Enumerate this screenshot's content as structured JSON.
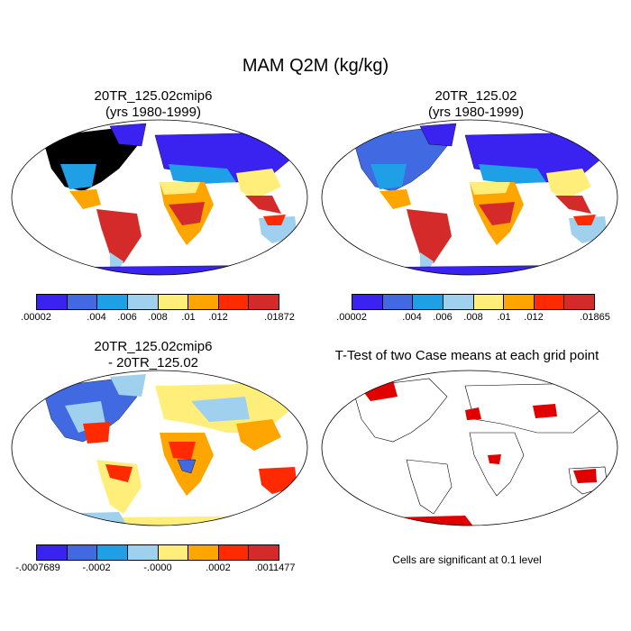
{
  "title": "MAM Q2M (kg/kg)",
  "colors": {
    "c1": "#3a22f0",
    "c2": "#4169e1",
    "c3": "#1e9fe6",
    "c4": "#9fd0ee",
    "c5": "#ffef7a",
    "c6": "#ffa500",
    "c7": "#ff2a00",
    "c8": "#d42a2a",
    "land_mid": "#ffef7a",
    "sig_red": "#e00000"
  },
  "panels": {
    "top_left": {
      "title_line1": "20TR_125.02cmip6",
      "title_line2": "(yrs 1980-1999)",
      "ticks": [
        ".00002",
        ".004",
        ".006",
        ".008",
        ".01",
        ".012",
        ".01872"
      ]
    },
    "top_right": {
      "title_line1": "20TR_125.02",
      "title_line2": "(yrs 1980-1999)",
      "ticks": [
        ".00002",
        ".004",
        ".006",
        ".008",
        ".01",
        ".012",
        ".01865"
      ]
    },
    "bottom_left": {
      "title_line1": "20TR_125.02cmip6",
      "title_line2": "- 20TR_125.02",
      "ticks": [
        "-.0007689",
        "-.0002",
        "-.0000",
        ".0002",
        ".0011477"
      ]
    },
    "bottom_right": {
      "title": "T-Test of two Case means at each grid point",
      "note": "Cells are significant at 0.1 level"
    }
  }
}
